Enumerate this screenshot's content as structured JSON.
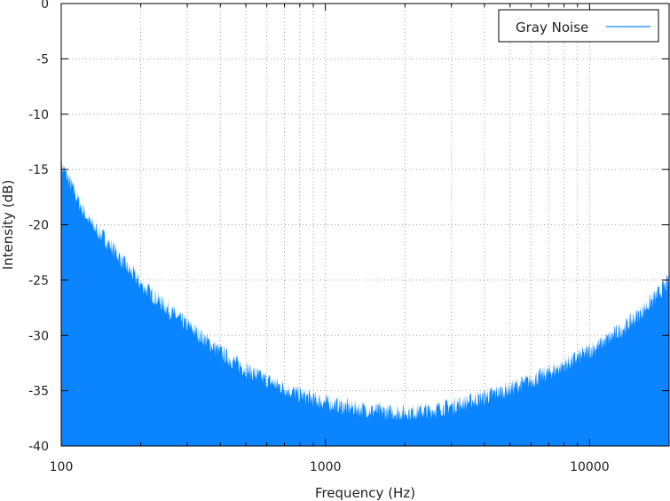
{
  "chart_data": {
    "type": "area",
    "title": "",
    "xlabel": "Frequency (Hz)",
    "ylabel": "Intensity (dB)",
    "x_scale": "log",
    "xlim": [
      100,
      20000
    ],
    "ylim": [
      -40,
      0
    ],
    "x_ticks": [
      100,
      1000,
      10000
    ],
    "x_tick_labels": [
      "100",
      "1000",
      "10000"
    ],
    "y_ticks": [
      0,
      -5,
      -10,
      -15,
      -20,
      -25,
      -30,
      -35,
      -40
    ],
    "y_tick_labels": [
      "0",
      "-5",
      "-10",
      "-15",
      "-20",
      "-25",
      "-30",
      "-35",
      "-40"
    ],
    "grid": true,
    "legend_position": "top-right",
    "series": [
      {
        "name": "Gray Noise",
        "color": "#0a84ff",
        "points": [
          [
            100,
            -14.8
          ],
          [
            110,
            -16.8
          ],
          [
            120,
            -18.8
          ],
          [
            130,
            -20.2
          ],
          [
            140,
            -21.0
          ],
          [
            150,
            -21.8
          ],
          [
            160,
            -22.6
          ],
          [
            170,
            -23.5
          ],
          [
            180,
            -24.3
          ],
          [
            190,
            -24.9
          ],
          [
            200,
            -25.6
          ],
          [
            220,
            -26.5
          ],
          [
            250,
            -27.7
          ],
          [
            280,
            -28.8
          ],
          [
            300,
            -29.3
          ],
          [
            350,
            -30.6
          ],
          [
            400,
            -31.7
          ],
          [
            450,
            -32.6
          ],
          [
            500,
            -33.3
          ],
          [
            600,
            -34.3
          ],
          [
            700,
            -35.0
          ],
          [
            800,
            -35.6
          ],
          [
            900,
            -36.0
          ],
          [
            1000,
            -36.3
          ],
          [
            1200,
            -36.7
          ],
          [
            1500,
            -37.0
          ],
          [
            1800,
            -37.2
          ],
          [
            2000,
            -37.2
          ],
          [
            2500,
            -37.0
          ],
          [
            3000,
            -36.6
          ],
          [
            3500,
            -36.2
          ],
          [
            4000,
            -35.8
          ],
          [
            5000,
            -35.0
          ],
          [
            6000,
            -34.3
          ],
          [
            7000,
            -33.6
          ],
          [
            8000,
            -32.9
          ],
          [
            10000,
            -31.6
          ],
          [
            12000,
            -30.4
          ],
          [
            14000,
            -29.2
          ],
          [
            16000,
            -27.9
          ],
          [
            18000,
            -26.6
          ],
          [
            20000,
            -25.3
          ]
        ]
      }
    ]
  }
}
